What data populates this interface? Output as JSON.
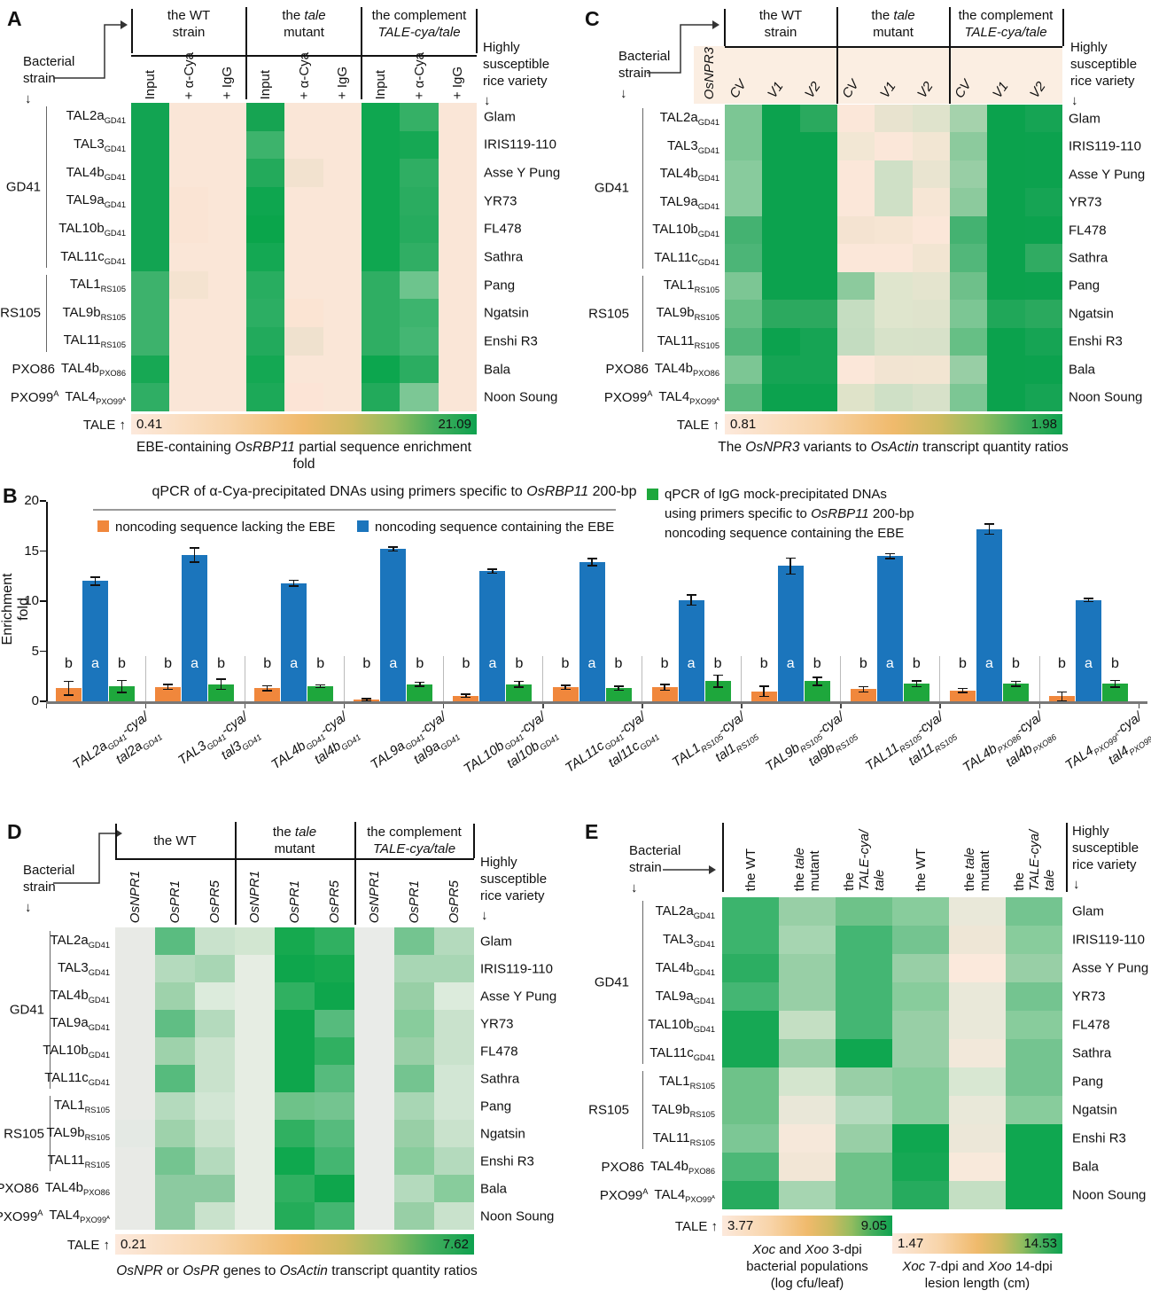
{
  "shared": {
    "left_header": "Bacterial\nstrain",
    "down_arrow": "↓",
    "right_header": "Highly susceptible rice variety",
    "tale_scale_label": "TALE ↑",
    "tale_rows": [
      "TAL2a~GD41~",
      "TAL3~GD41~",
      "TAL4b~GD41~",
      "TAL9a~GD41~",
      "TAL10b~GD41~",
      "TAL11c~GD41~",
      "TAL1~RS105~",
      "TAL9b~RS105~",
      "TAL11~RS105~",
      "TAL4b~PXO86~",
      "TAL4~PXO99^A^~"
    ],
    "strain_groups": [
      {
        "label": "GD41",
        "from": 0,
        "to": 5
      },
      {
        "label": "RS105",
        "from": 6,
        "to": 8
      },
      {
        "label": "PXO86",
        "from": 9,
        "to": 9
      },
      {
        "label": "PXO99^A^",
        "from": 10,
        "to": 10
      }
    ],
    "varieties": [
      "Glam",
      "IRIS119-110",
      "Asse Y Pung",
      "YR73",
      "FL478",
      "Sathra",
      "Pang",
      "Ngatsin",
      "Enshi R3",
      "Bala",
      "Noon Soung"
    ]
  },
  "chart_data": [
    {
      "panel": "A",
      "type": "heatmap",
      "group_titles": [
        "the WT\nstrain",
        "the *tale*\nmutant",
        "the complement\n*TALE-cya/tale*"
      ],
      "columns": [
        "Input",
        "+ α-Cya",
        "+ IgG",
        "Input",
        "+ α-Cya",
        "+ IgG",
        "Input",
        "+ α-Cya",
        "+ IgG"
      ],
      "scale_min": "0.41",
      "scale_max": "21.09",
      "caption": "EBE-containing *OsRBP11* partial sequence enrichment fold",
      "cells": [
        [
          "#12A452",
          "#FAE6D7",
          "#FAE6D7",
          "#16A452",
          "#FAE6D7",
          "#FAE6D7",
          "#0FA750",
          "#35B066",
          "#FAE6D7"
        ],
        [
          "#12A452",
          "#FAE6D7",
          "#FAE6D7",
          "#3DB36C",
          "#FAE6D7",
          "#FAE6D7",
          "#0FA750",
          "#16A854",
          "#FAE6D7"
        ],
        [
          "#12A452",
          "#FAE6D7",
          "#FAE6D7",
          "#23AA5B",
          "#F2E2CF",
          "#FAE6D7",
          "#0FA750",
          "#2FAE63",
          "#FAE6D7"
        ],
        [
          "#12A452",
          "#FAE4D4",
          "#FAE6D7",
          "#0EA64F",
          "#FAE6D7",
          "#FAE6D7",
          "#0FA750",
          "#2AAC60",
          "#FAE6D7"
        ],
        [
          "#12A452",
          "#FAE4D4",
          "#FAE6D7",
          "#0AA54B",
          "#FAE6D7",
          "#FAE6D7",
          "#0FA750",
          "#26AB5E",
          "#FAE6D7"
        ],
        [
          "#12A452",
          "#FAE6D7",
          "#FAE6D7",
          "#14A853",
          "#FAE6D7",
          "#FAE6D7",
          "#0FA750",
          "#30AE64",
          "#FAE6D7"
        ],
        [
          "#3DB26C",
          "#F4E3D0",
          "#FAE6D7",
          "#28AD60",
          "#FAE6D7",
          "#FAE6D7",
          "#2FAE63",
          "#6DC48D",
          "#FAE6D7"
        ],
        [
          "#3DB26C",
          "#FAE6D7",
          "#FAE6D7",
          "#2CAE63",
          "#FBE4D3",
          "#FAE6D7",
          "#2FAE63",
          "#3DB46E",
          "#FAE6D7"
        ],
        [
          "#3DB26C",
          "#FAE6D7",
          "#FAE6D7",
          "#22AA5C",
          "#EFE1CE",
          "#FAE6D7",
          "#2FAE63",
          "#44B673",
          "#FAE6D7"
        ],
        [
          "#17A854",
          "#FAE6D7",
          "#FAE6D7",
          "#14A853",
          "#FAE6D7",
          "#FAE6D7",
          "#0CA64E",
          "#2BAD61",
          "#FAE6D7"
        ],
        [
          "#2FAE64",
          "#FAE6D7",
          "#FAE6D7",
          "#1CA958",
          "#FCE4D6",
          "#FAE6D7",
          "#22AA5B",
          "#7CC795",
          "#FAE6D7"
        ]
      ]
    },
    {
      "panel": "B",
      "type": "bar",
      "title": "qPCR of α-Cya-precipitated DNAs using primers specific to *OsRBP11* 200-bp",
      "ylabel": "Enrichment fold",
      "ylim": [
        0,
        20
      ],
      "yticks": [
        0,
        5,
        10,
        15,
        20
      ],
      "legend": [
        {
          "label": "noncoding sequence lacking the EBE",
          "color": "#F0873C"
        },
        {
          "label": "noncoding sequence containing the EBE",
          "color": "#1B75BC"
        },
        {
          "label": "qPCR of IgG mock-precipitated DNAs\nusing primers specific to *OsRBP11* 200-bp\nnoncoding sequence containing the EBE",
          "color": "#1EA73C"
        }
      ],
      "categories": [
        "*TAL2a~GD41~-cya/*\n*tal2a~GD41~*",
        "*TAL3~GD41~-cya/*\n*tal3~GD41~*",
        "*TAL4b~GD41~-cya/*\n*tal4b~GD41~*",
        "*TAL9a~GD41~-cya/*\n*tal9a~GD41~*",
        "*TAL10b~GD41~-cya/*\n*tal10b~GD41~*",
        "*TAL11c~GD41~-cya/*\n*tal11c~GD41~*",
        "*TAL1~RS105~-cya/*\n*tal1~RS105~*",
        "*TAL9b~RS105~-cya/*\n*tal9b~RS105~*",
        "*TAL11~RS105~-cya/*\n*tal11~RS105~*",
        "*TAL4b~PXO86~-cya/*\n*tal4b~PXO86~*",
        "*TAL4~PXO99^A^~-cya/*\n*tal4~PXO99^A^~*"
      ],
      "series": [
        {
          "name": "noncoding sequence lacking the EBE",
          "color": "#F0873C",
          "values": [
            1.3,
            1.45,
            1.3,
            0.15,
            0.55,
            1.4,
            1.4,
            1.0,
            1.2,
            1.1,
            0.5
          ],
          "errors": [
            0.7,
            0.25,
            0.25,
            0.1,
            0.15,
            0.2,
            0.3,
            0.5,
            0.25,
            0.2,
            0.45
          ]
        },
        {
          "name": "noncoding sequence containing the EBE",
          "color": "#1B75BC",
          "values": [
            12.0,
            14.6,
            11.8,
            15.2,
            13.0,
            13.9,
            10.1,
            13.5,
            14.5,
            17.2,
            10.1
          ],
          "errors": [
            0.4,
            0.7,
            0.3,
            0.2,
            0.2,
            0.35,
            0.5,
            0.8,
            0.25,
            0.5,
            0.15
          ]
        },
        {
          "name": "qPCR of IgG mock-precipitated DNAs (EBE-containing)",
          "color": "#1EA73C",
          "values": [
            1.5,
            1.7,
            1.5,
            1.7,
            1.7,
            1.3,
            2.0,
            2.0,
            1.75,
            1.75,
            1.75
          ],
          "errors": [
            0.6,
            0.5,
            0.15,
            0.2,
            0.3,
            0.2,
            0.6,
            0.4,
            0.3,
            0.25,
            0.35
          ]
        }
      ],
      "sig_letters": [
        "b",
        "a",
        "b"
      ]
    },
    {
      "panel": "C",
      "type": "heatmap",
      "gene_label": "*OsNPR3*",
      "band_color": "#FBEEE2",
      "group_titles": [
        "the WT\nstrain",
        "the *tale*\nmutant",
        "the complement\n*TALE-cya/tale*"
      ],
      "columns": [
        "*CV*",
        "*V1*",
        "*V2*",
        "*CV*",
        "*V1*",
        "*V2*",
        "*CV*",
        "*V1*",
        "*V2*"
      ],
      "scale_min": "0.81",
      "scale_max": "1.98",
      "caption": "The *OsNPR3* variants to *OsActin* transcript quantity ratios",
      "cells": [
        [
          "#7CC694",
          "#0CA24E",
          "#2AA95E",
          "#FBE7D9",
          "#E8E3CF",
          "#DFE3CC",
          "#A5D2AC",
          "#0BA24D",
          "#16A454"
        ],
        [
          "#7CC694",
          "#0CA24E",
          "#0CA24E",
          "#F2E7D4",
          "#FBE7D9",
          "#F2E6D3",
          "#8CCA9D",
          "#0BA24D",
          "#0CA24E"
        ],
        [
          "#88CB9D",
          "#0CA24E",
          "#0CA24E",
          "#FBE7D9",
          "#CFE0C6",
          "#E9E4D0",
          "#98CEA5",
          "#0BA24D",
          "#0CA24E"
        ],
        [
          "#88CB9D",
          "#0CA24E",
          "#0CA24E",
          "#FBE7D9",
          "#CFE0C6",
          "#F6E6D5",
          "#8CCA9D",
          "#0BA24D",
          "#16A454"
        ],
        [
          "#44B271",
          "#0CA24E",
          "#0CA24E",
          "#F4E3D1",
          "#F6E5D3",
          "#FBE7D9",
          "#44B271",
          "#0BA24D",
          "#0CA24E"
        ],
        [
          "#4CB577",
          "#0CA24E",
          "#0CA24E",
          "#FBE7D9",
          "#FBE7D9",
          "#F2E5D2",
          "#52B77A",
          "#0BA24D",
          "#30AB62"
        ],
        [
          "#7CC694",
          "#0CA24E",
          "#0CA24E",
          "#8CCA9D",
          "#DFE5CD",
          "#E4E4CE",
          "#6EC08A",
          "#0BA24D",
          "#0CA24E"
        ],
        [
          "#66BF85",
          "#2CA95F",
          "#2CA95F",
          "#C5DDC1",
          "#DFE5CD",
          "#DFE3CC",
          "#7CC694",
          "#20A759",
          "#2AA95E"
        ],
        [
          "#52B77A",
          "#0CA24E",
          "#16A454",
          "#C3DCC0",
          "#D7E2C9",
          "#D7E1C9",
          "#66BF85",
          "#0BA24D",
          "#16A454"
        ],
        [
          "#7CC694",
          "#16A454",
          "#16A454",
          "#FBE7D9",
          "#F2E4D2",
          "#F2E5D2",
          "#98CEA5",
          "#0BA24D",
          "#0CA24E"
        ],
        [
          "#5BBA7E",
          "#0CA24E",
          "#0CA24E",
          "#DFE3C9",
          "#CFE0C6",
          "#D7E1C9",
          "#7CC694",
          "#0BA24D",
          "#16A454"
        ]
      ]
    },
    {
      "panel": "D",
      "type": "heatmap",
      "group_titles": [
        "the WT",
        "the *tale*\nmutant",
        "the complement\n*TALE-cya/tale*"
      ],
      "columns": [
        "*OsNPR1*",
        "*OsPR1*",
        "*OsPR5*",
        "*OsNPR1*",
        "*OsPR1*",
        "*OsPR5*",
        "*OsNPR1*",
        "*OsPR1*",
        "*OsPR5*"
      ],
      "scale_min": "0.21",
      "scale_max": "7.62",
      "caption": "*OsNPR* or *OsPR* genes to *OsActin* transcript quantity ratios",
      "cells": [
        [
          "#E8EAE6",
          "#5ABC80",
          "#C9E2CC",
          "#D2E6D1",
          "#16A94F",
          "#30B061",
          "#E9EBE8",
          "#74C490",
          "#B4DABD"
        ],
        [
          "#E8EAE6",
          "#B4DABD",
          "#A8D6B4",
          "#E6EDE3",
          "#0EA64C",
          "#16A94F",
          "#E9EBE8",
          "#A8D6B4",
          "#A8D6B4"
        ],
        [
          "#E8EAE6",
          "#9ED2AB",
          "#DCEBDC",
          "#E6EDE3",
          "#30B061",
          "#0EA64C",
          "#E9EBE8",
          "#98CFA6",
          "#DCEBDC"
        ],
        [
          "#E8EAE6",
          "#60BE84",
          "#B4DABD",
          "#E6EDE3",
          "#0EA64C",
          "#56BB7D",
          "#E9EBE8",
          "#88CC9C",
          "#C9E2CC"
        ],
        [
          "#E8EAE6",
          "#9ED2AB",
          "#C9E2CC",
          "#E6EDE3",
          "#0EA64C",
          "#30B061",
          "#E9EBE8",
          "#98CFA6",
          "#C9E2CC"
        ],
        [
          "#E8EAE6",
          "#56BB7D",
          "#C9E2CC",
          "#E6EDE3",
          "#0EA64C",
          "#56BB7D",
          "#E9EBE8",
          "#74C490",
          "#D2E6D4"
        ],
        [
          "#E8EAE6",
          "#B4DABD",
          "#D2E6D4",
          "#E6EDE3",
          "#6EC289",
          "#74C490",
          "#E9EBE8",
          "#A8D6B4",
          "#D2E6D4"
        ],
        [
          "#E4E9E4",
          "#9ED2AB",
          "#C9E2CC",
          "#E6EDE3",
          "#30B061",
          "#56BB7D",
          "#E9EBE8",
          "#98CFA6",
          "#C9E2CC"
        ],
        [
          "#E8EAE6",
          "#74C490",
          "#B4DABD",
          "#E6EDE3",
          "#0FA84E",
          "#44B671",
          "#E9EBE8",
          "#88CC9C",
          "#B4DABD"
        ],
        [
          "#E8EAE6",
          "#8CCAA0",
          "#8CCAA0",
          "#E6EDE3",
          "#30B061",
          "#0EA64C",
          "#E9EBE8",
          "#B4DABD",
          "#88CC9C"
        ],
        [
          "#E8EAE6",
          "#8CCAA0",
          "#C9E2CC",
          "#E6EDE3",
          "#24AC59",
          "#44B671",
          "#E9EBE8",
          "#98CFA6",
          "#C9E2CC"
        ]
      ]
    },
    {
      "panel": "E",
      "type": "heatmap",
      "columns": [
        "the WT",
        "the *tale*\nmutant",
        "the\n*TALE-cya/*\n*tale*",
        "the WT",
        "the *tale*\nmutant",
        "the\n*TALE-cya/*\n*tale*"
      ],
      "scales": [
        {
          "min": "3.77",
          "max": "9.05",
          "caption": "*Xoc* and *Xoo* 3-dpi\nbacterial populations\n(log cfu/leaf)"
        },
        {
          "min": "1.47",
          "max": "14.53",
          "caption": "*Xoc* 7-dpi  and *Xoo* 14-dpi\nlesion length (cm)"
        }
      ],
      "cells": [
        [
          "#3CB46D",
          "#98CFA6",
          "#6EC289",
          "#88CC9C",
          "#E9E8D9",
          "#74C490"
        ],
        [
          "#3CB46D",
          "#A6D5B1",
          "#44B673",
          "#74C490",
          "#EEE6D6",
          "#88CC9C"
        ],
        [
          "#2CAE62",
          "#98CFA6",
          "#44B673",
          "#98CFA6",
          "#FBE9DC",
          "#98CFA6"
        ],
        [
          "#44B673",
          "#98CFA6",
          "#44B673",
          "#88CC9C",
          "#E9E8D9",
          "#74C490"
        ],
        [
          "#16A854",
          "#C4DFC3",
          "#44B673",
          "#98CFA6",
          "#E9E8D9",
          "#88CC9C"
        ],
        [
          "#16A854",
          "#98CFA6",
          "#0FA750",
          "#98CFA6",
          "#F2E8DA",
          "#74C490"
        ],
        [
          "#6EC289",
          "#D4E5CE",
          "#98CFA6",
          "#88CC9C",
          "#D8E7D2",
          "#74C490"
        ],
        [
          "#6EC289",
          "#E9E7D8",
          "#B4DABD",
          "#88CC9C",
          "#E9E8D9",
          "#88CC9C"
        ],
        [
          "#7CC795",
          "#F6E8DA",
          "#98CFA6",
          "#0FA750",
          "#ECE7D8",
          "#0FA750"
        ],
        [
          "#4CB877",
          "#F2E6D6",
          "#6EC289",
          "#16A854",
          "#F8E9DB",
          "#0FA750"
        ],
        [
          "#26AB5E",
          "#A6D5B1",
          "#6EC289",
          "#26AB5E",
          "#C4DFC3",
          "#0FA750"
        ]
      ]
    }
  ]
}
